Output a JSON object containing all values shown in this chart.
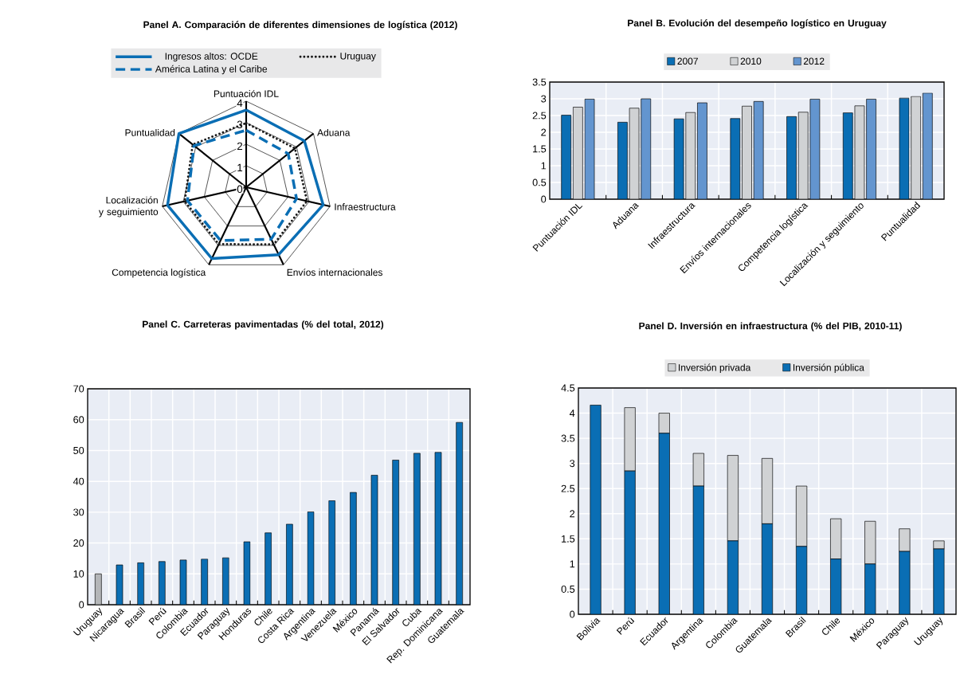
{
  "chart_data": [
    {
      "type": "radar",
      "title": "Panel A. Comparación de diferentes dimensiones de logística (2012)",
      "categories": [
        "Puntuación IDL",
        "Aduana",
        "Infraestructura",
        "Envíos internacionales",
        "Competencia logística",
        "Localización y seguimiento",
        "Puntualidad"
      ],
      "series": [
        {
          "name": "Ingresos altos: OCDE",
          "color": "#0a6eb4",
          "line_style": "solid",
          "values": [
            3.59,
            3.46,
            3.67,
            3.48,
            3.68,
            3.75,
            4.0
          ]
        },
        {
          "name": "Uruguay",
          "color": "#1a1a1a",
          "line_style": "dotted",
          "values": [
            2.98,
            2.9,
            2.9,
            2.95,
            2.94,
            2.93,
            3.18
          ]
        },
        {
          "name": "América Latina y el Caribe",
          "color": "#0a6eb4",
          "line_style": "dashed",
          "values": [
            2.65,
            2.5,
            2.4,
            2.68,
            2.75,
            2.8,
            3.1
          ]
        }
      ],
      "ylim": [
        0,
        4
      ],
      "yticks": [
        0,
        1,
        2,
        3,
        4
      ],
      "grid": true,
      "legend": "top"
    },
    {
      "type": "bar",
      "title": "Panel B. Evolución del desempeño logístico en Uruguay",
      "categories": [
        "Puntuación IDL",
        "Aduana",
        "Infraestructura",
        "Envíos internacionales",
        "Competencia logística",
        "Localización y seguimiento",
        "Puntualidad"
      ],
      "series": [
        {
          "name": "2007",
          "color": "#0a6eb4",
          "values": [
            2.51,
            2.3,
            2.4,
            2.41,
            2.47,
            2.58,
            3.02
          ]
        },
        {
          "name": "2010",
          "color": "#d0d2d4",
          "values": [
            2.75,
            2.72,
            2.59,
            2.78,
            2.6,
            2.79,
            3.07
          ]
        },
        {
          "name": "2012",
          "color": "#6395cf",
          "values": [
            2.99,
            3.0,
            2.88,
            2.92,
            2.99,
            2.99,
            3.17
          ]
        }
      ],
      "ylim": [
        0,
        3.5
      ],
      "yticks": [
        0,
        0.5,
        1,
        1.5,
        2,
        2.5,
        3,
        3.5
      ],
      "grid": true,
      "legend": "top"
    },
    {
      "type": "bar",
      "title": "Panel C. Carreteras pavimentadas (% del total, 2012)",
      "categories": [
        "Uruguay",
        "Nicaragua",
        "Brasil",
        "Perú",
        "Colombia",
        "Ecuador",
        "Paraguay",
        "Honduras",
        "Chile",
        "Costa Rica",
        "Argentina",
        "Venezuela",
        "México",
        "Panamá",
        "El Salvador",
        "Cuba",
        "Rep. Dominicana",
        "Guatemala"
      ],
      "values": [
        10,
        12.9,
        13.6,
        14.0,
        14.5,
        14.8,
        15.2,
        20.4,
        23.3,
        26.1,
        30.1,
        33.7,
        36.4,
        42.0,
        46.9,
        49.1,
        49.4,
        59.1
      ],
      "colors": [
        "#b4b6b8",
        "#0a6eb4",
        "#0a6eb4",
        "#0a6eb4",
        "#0a6eb4",
        "#0a6eb4",
        "#0a6eb4",
        "#0a6eb4",
        "#0a6eb4",
        "#0a6eb4",
        "#0a6eb4",
        "#0a6eb4",
        "#0a6eb4",
        "#0a6eb4",
        "#0a6eb4",
        "#0a6eb4",
        "#0a6eb4",
        "#0a6eb4"
      ],
      "ylim": [
        0,
        70
      ],
      "yticks": [
        0,
        10,
        20,
        30,
        40,
        50,
        60,
        70
      ],
      "grid": true
    },
    {
      "type": "bar",
      "title": "Panel D. Inversión en infraestructura (% del PIB, 2010-11)",
      "categories": [
        "Bolivia",
        "Perú",
        "Ecuador",
        "Argentina",
        "Colombia",
        "Guatemala",
        "Brasil",
        "Chile",
        "México",
        "Paraguay",
        "Uruguay"
      ],
      "series": [
        {
          "name": "Inversión pública",
          "color": "#0a6eb4",
          "values": [
            4.16,
            2.85,
            3.6,
            2.55,
            1.46,
            1.8,
            1.35,
            1.1,
            1.0,
            1.25,
            1.3
          ]
        },
        {
          "name": "Inversión privada",
          "color": "#d0d2d4",
          "values": [
            0,
            1.26,
            0.4,
            0.65,
            1.7,
            1.3,
            1.2,
            0.8,
            0.85,
            0.45,
            0.16
          ]
        }
      ],
      "stacked": true,
      "ylim": [
        0,
        4.5
      ],
      "yticks": [
        0,
        0.5,
        1,
        1.5,
        2,
        2.5,
        3,
        3.5,
        4,
        4.5
      ],
      "grid": true,
      "legend": "top"
    }
  ]
}
